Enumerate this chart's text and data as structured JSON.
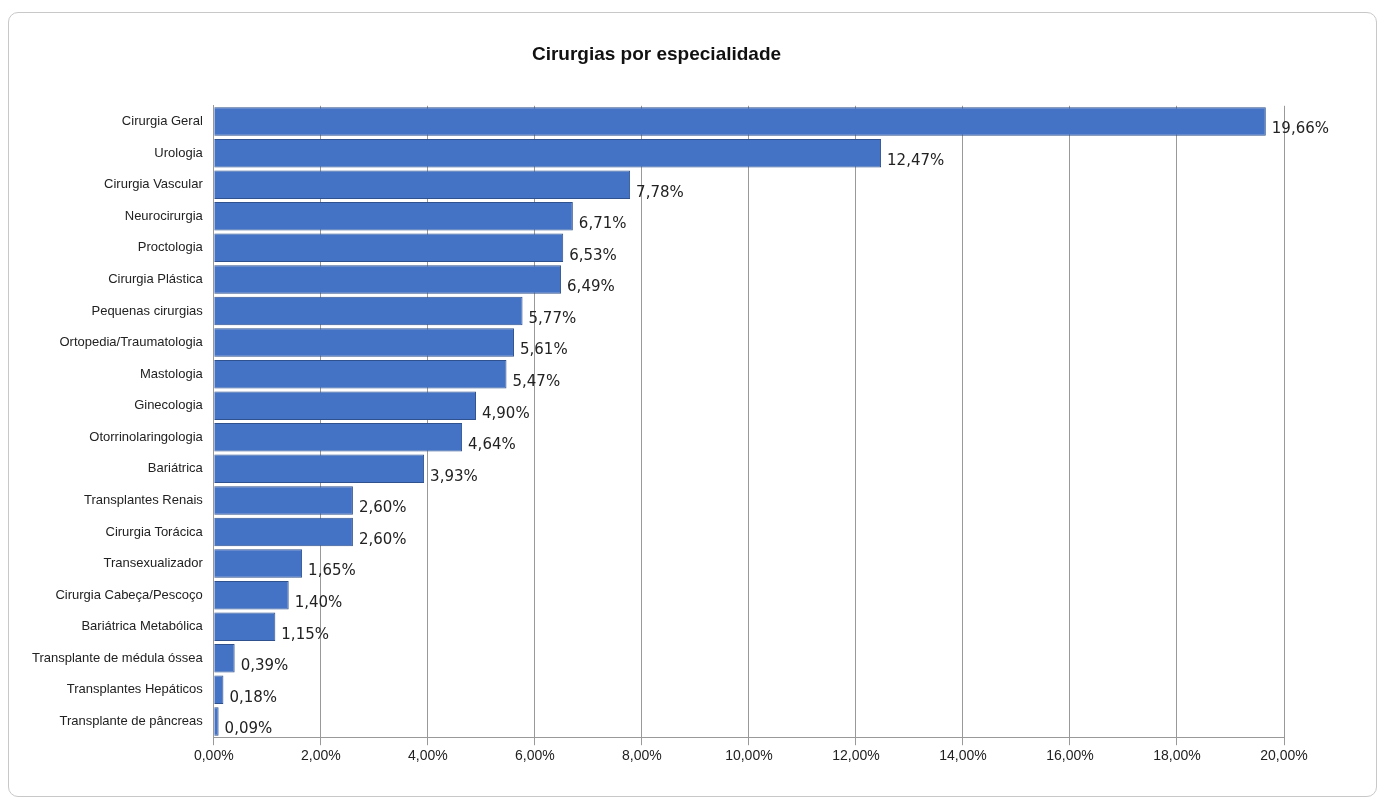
{
  "chart_data": {
    "type": "bar",
    "orientation": "horizontal",
    "title": "Cirurgias por especialidade",
    "categories": [
      "Cirurgia Geral",
      "Urologia",
      "Cirurgia Vascular",
      "Neurocirurgia",
      "Proctologia",
      "Cirurgia Plástica",
      "Pequenas cirurgias",
      "Ortopedia/Traumatologia",
      "Mastologia",
      "Ginecologia",
      "Otorrinolaringologia",
      "Bariátrica",
      "Transplantes Renais",
      "Cirurgia Torácica",
      "Transexualizador",
      "Cirurgia Cabeça/Pescoço",
      "Bariátrica Metabólica",
      "Transplante de médula óssea",
      "Transplantes Hepáticos",
      "Transplante de pâncreas"
    ],
    "values": [
      19.66,
      12.47,
      7.78,
      6.71,
      6.53,
      6.49,
      5.77,
      5.61,
      5.47,
      4.9,
      4.64,
      3.93,
      2.6,
      2.6,
      1.65,
      1.4,
      1.15,
      0.39,
      0.18,
      0.09
    ],
    "value_labels": [
      "19,66%",
      "12,47%",
      "7,78%",
      "6,71%",
      "6,53%",
      "6,49%",
      "5,77%",
      "5,61%",
      "5,47%",
      "4,90%",
      "4,64%",
      "3,93%",
      "2,60%",
      "2,60%",
      "1,65%",
      "1,40%",
      "1,15%",
      "0,39%",
      "0,18%",
      "0,09%"
    ],
    "color": "#4472c4",
    "xlim": [
      0,
      20
    ],
    "xticks": [
      {
        "value": 0,
        "label": "0,00%"
      },
      {
        "value": 2,
        "label": "2,00%"
      },
      {
        "value": 4,
        "label": "4,00%"
      },
      {
        "value": 6,
        "label": "6,00%"
      },
      {
        "value": 8,
        "label": "8,00%"
      },
      {
        "value": 10,
        "label": "10,00%"
      },
      {
        "value": 12,
        "label": "12,00%"
      },
      {
        "value": 14,
        "label": "14,00%"
      },
      {
        "value": 16,
        "label": "16,00%"
      },
      {
        "value": 18,
        "label": "18,00%"
      },
      {
        "value": 20,
        "label": "20,00%"
      }
    ],
    "grid": "x",
    "legend": false
  }
}
